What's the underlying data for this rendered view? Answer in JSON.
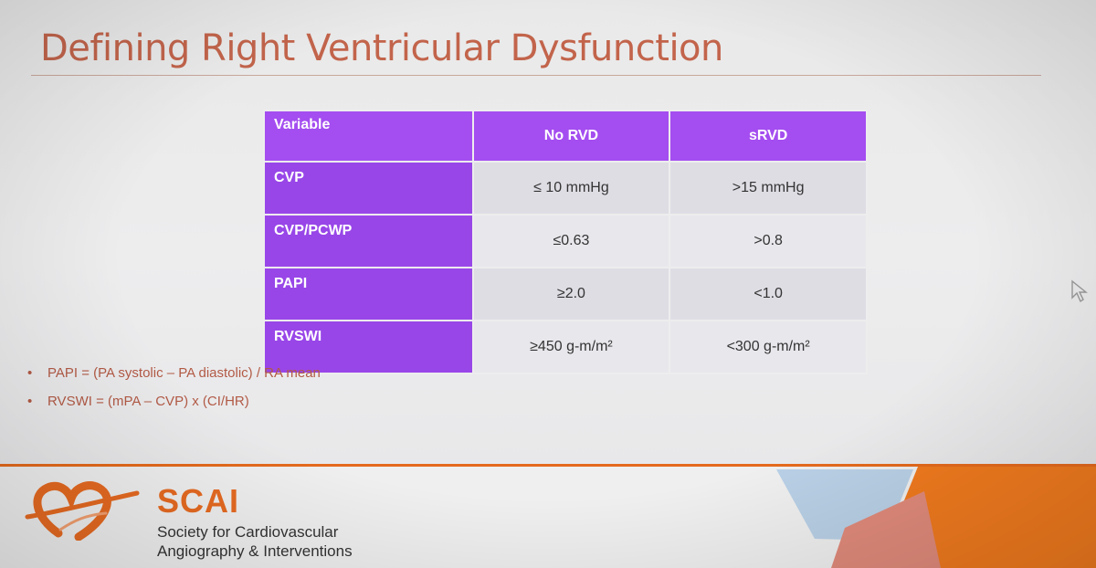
{
  "slide": {
    "title": "Defining Right Ventricular Dysfunction"
  },
  "table": {
    "headers": [
      "Variable",
      "No RVD",
      "sRVD"
    ],
    "rows": [
      {
        "variable": "CVP",
        "no_rvd": "≤ 10 mmHg",
        "srvd": ">15 mmHg"
      },
      {
        "variable": "CVP/PCWP",
        "no_rvd": "≤0.63",
        "srvd": ">0.8"
      },
      {
        "variable": "PAPI",
        "no_rvd": "≥2.0",
        "srvd": "<1.0"
      },
      {
        "variable": "RVSWI",
        "no_rvd": "≥450 g-m/m²",
        "srvd": "<300 g-m/m²"
      }
    ]
  },
  "notes": [
    {
      "bullet": "•",
      "text": "PAPI = (PA systolic – PA diastolic) / RA mean"
    },
    {
      "bullet": "•",
      "text": "RVSWI = (mPA – CVP) x (CI/HR)"
    }
  ],
  "footer": {
    "logo_name": "SCAI",
    "logo_tagline_1": "Society for Cardiovascular",
    "logo_tagline_2": "Angiography & Interventions"
  },
  "colors": {
    "title": "#c2644b",
    "header_purple": "#a44df0",
    "variable_purple": "#9846e8",
    "brand_orange": "#e66a21",
    "deco_blue": "#b9d0e6",
    "deco_salmon": "#e08a7a"
  },
  "icons": {
    "logo": "scai-heart-logo-icon",
    "cursor": "mouse-pointer-icon"
  }
}
